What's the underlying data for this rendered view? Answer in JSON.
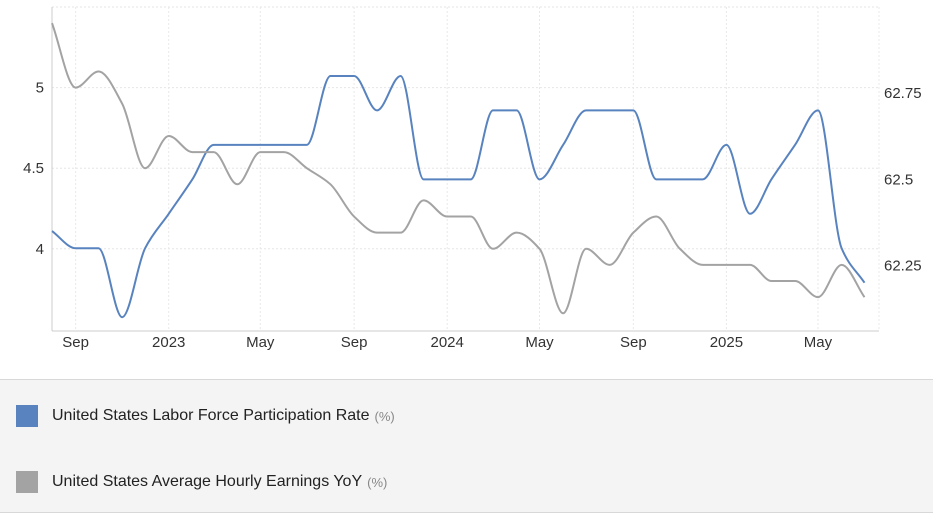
{
  "chart_data": {
    "type": "line",
    "x_ticks": [
      "Sep",
      "2023",
      "May",
      "Sep",
      "2024",
      "May",
      "Sep",
      "2025",
      "May"
    ],
    "x_tick_dates": [
      "2022-09-01",
      "2023-01-01",
      "2023-05-01",
      "2023-09-01",
      "2024-01-01",
      "2024-05-01",
      "2024-09-01",
      "2025-01-01",
      "2025-05-01"
    ],
    "x_range": [
      "2022-08-01",
      "2025-07-20"
    ],
    "left_axis": {
      "ticks": [
        "4",
        "4.5",
        "5"
      ],
      "tick_values": [
        4,
        4.5,
        5
      ],
      "range": [
        3.49,
        5.5
      ]
    },
    "right_axis": {
      "ticks": [
        "62.25",
        "62.5",
        "62.75"
      ],
      "tick_values": [
        62.25,
        62.5,
        62.75
      ],
      "range": [
        62.06,
        63.0
      ]
    },
    "grid": true,
    "series": [
      {
        "name": "United States Labor Force Participation Rate",
        "unit": "(%)",
        "axis": "right",
        "color": "#5883bf",
        "x": [
          "2022-08-01",
          "2022-09-01",
          "2022-10-01",
          "2022-11-01",
          "2022-12-01",
          "2023-01-01",
          "2023-02-01",
          "2023-03-01",
          "2023-04-01",
          "2023-05-01",
          "2023-06-01",
          "2023-07-01",
          "2023-08-01",
          "2023-09-01",
          "2023-10-01",
          "2023-11-01",
          "2023-12-01",
          "2024-01-01",
          "2024-02-01",
          "2024-03-01",
          "2024-04-01",
          "2024-05-01",
          "2024-06-01",
          "2024-07-01",
          "2024-08-01",
          "2024-09-01",
          "2024-10-01",
          "2024-11-01",
          "2024-12-01",
          "2025-01-01",
          "2025-02-01",
          "2025-03-01",
          "2025-04-01",
          "2025-05-01",
          "2025-06-01",
          "2025-07-01"
        ],
        "values": [
          62.35,
          62.3,
          62.3,
          62.1,
          62.3,
          62.4,
          62.5,
          62.6,
          62.6,
          62.6,
          62.6,
          62.6,
          62.8,
          62.8,
          62.7,
          62.8,
          62.5,
          62.5,
          62.5,
          62.7,
          62.7,
          62.5,
          62.6,
          62.7,
          62.7,
          62.7,
          62.5,
          62.5,
          62.5,
          62.6,
          62.4,
          62.5,
          62.6,
          62.7,
          62.3,
          62.2
        ]
      },
      {
        "name": "United States Average Hourly Earnings YoY",
        "unit": "(%)",
        "axis": "left",
        "color": "#a3a3a3",
        "x": [
          "2022-08-01",
          "2022-09-01",
          "2022-10-01",
          "2022-11-01",
          "2022-12-01",
          "2023-01-01",
          "2023-02-01",
          "2023-03-01",
          "2023-04-01",
          "2023-05-01",
          "2023-06-01",
          "2023-07-01",
          "2023-08-01",
          "2023-09-01",
          "2023-10-01",
          "2023-11-01",
          "2023-12-01",
          "2024-01-01",
          "2024-02-01",
          "2024-03-01",
          "2024-04-01",
          "2024-05-01",
          "2024-06-01",
          "2024-07-01",
          "2024-08-01",
          "2024-09-01",
          "2024-10-01",
          "2024-11-01",
          "2024-12-01",
          "2025-01-01",
          "2025-02-01",
          "2025-03-01",
          "2025-04-01",
          "2025-05-01",
          "2025-06-01",
          "2025-07-01"
        ],
        "values": [
          5.4,
          5.0,
          5.1,
          4.9,
          4.5,
          4.7,
          4.6,
          4.6,
          4.4,
          4.6,
          4.6,
          4.5,
          4.4,
          4.2,
          4.1,
          4.1,
          4.3,
          4.2,
          4.2,
          4.0,
          4.1,
          4.0,
          3.6,
          4.0,
          3.9,
          4.1,
          4.2,
          4.0,
          3.9,
          3.9,
          3.9,
          3.8,
          3.8,
          3.7,
          3.9,
          3.7
        ]
      }
    ]
  }
}
